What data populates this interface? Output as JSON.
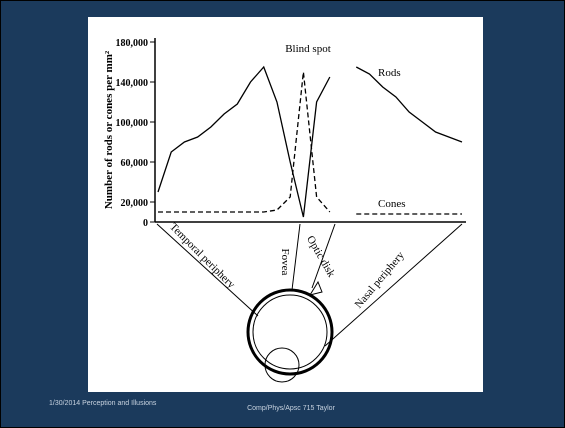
{
  "chart_data": {
    "type": "line",
    "y_label": "Number of rods or cones per mm²",
    "categories": [
      null,
      null,
      null,
      null,
      null,
      null,
      null,
      null,
      null,
      null,
      null,
      null,
      null,
      null,
      null,
      null,
      null,
      null,
      null,
      null,
      null,
      null,
      null,
      null
    ],
    "series": [
      {
        "name": "Rods",
        "color": "#000000",
        "values": [
          30000,
          70000,
          80000,
          85000,
          95000,
          108000,
          118000,
          140000,
          155000,
          120000,
          60000,
          5000,
          120000,
          145000,
          null,
          155000,
          148000,
          135000,
          125000,
          110000,
          100000,
          90000,
          85000,
          80000
        ]
      },
      {
        "name": "Cones",
        "color": "#000000",
        "values": [
          10000,
          10000,
          10000,
          10000,
          10000,
          10000,
          10000,
          10000,
          10000,
          12000,
          25000,
          150000,
          25000,
          10000,
          null,
          8000,
          8000,
          8000,
          8000,
          8000,
          8000,
          8000,
          8000,
          8000
        ]
      }
    ],
    "ylim": [
      0,
      180000
    ],
    "yticks": [
      0,
      {
        "value": 20000,
        "label": "20,000"
      },
      {
        "value": 60000,
        "label": "60,000"
      },
      {
        "value": 100000,
        "label": "100,000"
      },
      {
        "value": 140000,
        "label": "140,000"
      },
      {
        "value": 180000,
        "label": "180,000"
      }
    ],
    "annotations": [
      "Blind spot",
      "Fovea",
      "Optic disk",
      "Temporal periphery",
      "Nasal periphery"
    ]
  },
  "footer": {
    "left": "1/30/2014 Perception and Illusions",
    "center": "Comp/Phys/Apsc 715 Taylor"
  }
}
